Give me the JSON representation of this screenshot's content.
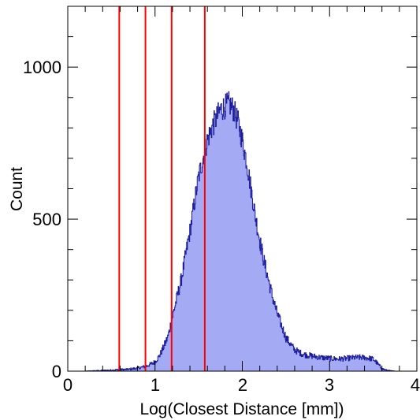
{
  "chart_data": {
    "type": "area",
    "title": "",
    "xlabel": "Log(Closest Distance [mm])",
    "ylabel": "Count",
    "xlim": [
      0,
      4
    ],
    "ylim": [
      0,
      1200
    ],
    "x_ticks": [
      0,
      1,
      2,
      3,
      4
    ],
    "x_tick_labels": [
      "0",
      "1",
      "2",
      "3",
      "4"
    ],
    "y_ticks": [
      0,
      500,
      1000
    ],
    "y_tick_labels": [
      "0",
      "500",
      "1000"
    ],
    "grid": false,
    "legend": "none",
    "series": [
      {
        "x": [
          0.2,
          0.3,
          0.4,
          0.5,
          0.6,
          0.7,
          0.8,
          0.9,
          1.0,
          1.05,
          1.1,
          1.15,
          1.2,
          1.25,
          1.3,
          1.35,
          1.4,
          1.45,
          1.5,
          1.55,
          1.6,
          1.65,
          1.7,
          1.75,
          1.8,
          1.85,
          1.9,
          1.95,
          2.0,
          2.05,
          2.1,
          2.15,
          2.2,
          2.25,
          2.3,
          2.35,
          2.4,
          2.45,
          2.5,
          2.55,
          2.6,
          2.7,
          2.8,
          2.9,
          3.0,
          3.1,
          3.2,
          3.3,
          3.4,
          3.5,
          3.55,
          3.6,
          3.65,
          3.7,
          3.75
        ],
        "y": [
          0,
          1,
          2,
          3,
          5,
          6,
          10,
          16,
          30,
          50,
          80,
          115,
          180,
          240,
          300,
          380,
          460,
          550,
          640,
          700,
          760,
          800,
          830,
          860,
          870,
          880,
          860,
          820,
          760,
          690,
          600,
          510,
          430,
          360,
          300,
          240,
          190,
          150,
          110,
          90,
          70,
          55,
          50,
          45,
          42,
          40,
          42,
          45,
          45,
          40,
          25,
          8,
          3,
          1,
          0
        ]
      }
    ],
    "vertical_lines": [
      0.59,
      0.89,
      1.19,
      1.57
    ],
    "colors": {
      "fill": "#a5aaf5",
      "outline": "#1a1a9a",
      "vertical_lines": "#ff0000",
      "frame": "#000000"
    }
  }
}
